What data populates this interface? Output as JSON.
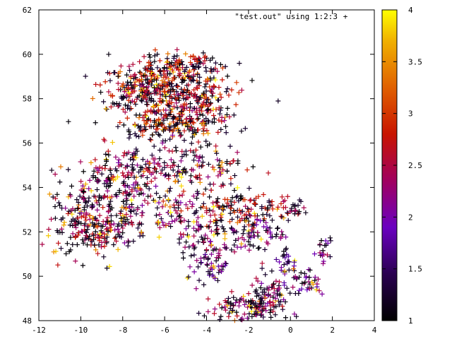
{
  "chart_data": {
    "type": "scatter",
    "legend": {
      "label": "\"test.out\" using 1:2:3",
      "marker": "+",
      "placement": "top-right"
    },
    "xlim": [
      -12,
      4
    ],
    "ylim": [
      48,
      62
    ],
    "x_ticks": [
      -12,
      -10,
      -8,
      -6,
      -4,
      -2,
      0,
      2,
      4
    ],
    "y_ticks": [
      48,
      50,
      52,
      54,
      56,
      58,
      60,
      62
    ],
    "x_tick_labels": [
      "-12",
      "-10",
      "-8",
      "-6",
      "-4",
      "-2",
      "0",
      "2",
      "4"
    ],
    "y_tick_labels": [
      "48",
      "50",
      "52",
      "54",
      "56",
      "58",
      "60",
      "62"
    ],
    "colorbar": {
      "range": [
        1,
        4
      ],
      "ticks": [
        1,
        1.5,
        2,
        2.5,
        3,
        3.5,
        4
      ],
      "tick_labels": [
        "1",
        "1.5",
        "2",
        "2.5",
        "3",
        "3.5",
        "4"
      ],
      "palette": "black-blue-purple-red-orange-yellow"
    },
    "grid": false,
    "clusters": [
      {
        "x": -5.5,
        "y": 58.2,
        "sx": 1.5,
        "sy": 0.8,
        "n": 320,
        "c": 2.8
      },
      {
        "x": -7.2,
        "y": 58.6,
        "sx": 0.9,
        "sy": 0.5,
        "n": 160,
        "c": 2.6
      },
      {
        "x": -5.2,
        "y": 59.5,
        "sx": 0.8,
        "sy": 0.3,
        "n": 90,
        "c": 2.7
      },
      {
        "x": -6.0,
        "y": 56.8,
        "sx": 1.1,
        "sy": 0.3,
        "n": 110,
        "c": 2.9
      },
      {
        "x": -4.5,
        "y": 57.3,
        "sx": 0.9,
        "sy": 0.6,
        "n": 100,
        "c": 2.5
      },
      {
        "x": -7.0,
        "y": 54.9,
        "sx": 1.6,
        "sy": 0.5,
        "n": 130,
        "c": 2.4
      },
      {
        "x": -4.4,
        "y": 54.9,
        "sx": 1.0,
        "sy": 0.5,
        "n": 90,
        "c": 2.4
      },
      {
        "x": -8.3,
        "y": 54.1,
        "sx": 0.9,
        "sy": 0.5,
        "n": 70,
        "c": 2.3
      },
      {
        "x": -9.8,
        "y": 52.2,
        "sx": 0.8,
        "sy": 0.7,
        "n": 150,
        "c": 2.6
      },
      {
        "x": -8.2,
        "y": 52.6,
        "sx": 0.7,
        "sy": 0.8,
        "n": 110,
        "c": 2.4
      },
      {
        "x": -5.5,
        "y": 52.8,
        "sx": 0.8,
        "sy": 0.5,
        "n": 80,
        "c": 2.3
      },
      {
        "x": -2.5,
        "y": 53.0,
        "sx": 1.2,
        "sy": 0.5,
        "n": 140,
        "c": 2.7
      },
      {
        "x": -3.5,
        "y": 51.6,
        "sx": 0.9,
        "sy": 0.6,
        "n": 90,
        "c": 2.3
      },
      {
        "x": -1.3,
        "y": 52.0,
        "sx": 0.5,
        "sy": 0.4,
        "n": 50,
        "c": 2.2
      },
      {
        "x": 0.0,
        "y": 53.1,
        "sx": 0.3,
        "sy": 0.2,
        "n": 25,
        "c": 2.5
      },
      {
        "x": -4.0,
        "y": 50.4,
        "sx": 0.6,
        "sy": 0.4,
        "n": 45,
        "c": 2.0
      },
      {
        "x": -1.8,
        "y": 48.6,
        "sx": 0.9,
        "sy": 0.3,
        "n": 120,
        "c": 2.4
      },
      {
        "x": -1.0,
        "y": 49.3,
        "sx": 0.5,
        "sy": 0.3,
        "n": 50,
        "c": 2.3
      },
      {
        "x": 0.6,
        "y": 49.8,
        "sx": 0.6,
        "sy": 0.4,
        "n": 40,
        "c": 2.1
      },
      {
        "x": 1.5,
        "y": 51.2,
        "sx": 0.3,
        "sy": 0.3,
        "n": 20,
        "c": 2.2
      },
      {
        "x": -0.2,
        "y": 50.8,
        "sx": 0.3,
        "sy": 0.4,
        "n": 25,
        "c": 1.8
      },
      {
        "x": -9.5,
        "y": 53.5,
        "sx": 0.8,
        "sy": 0.4,
        "n": 50,
        "c": 2.3
      }
    ]
  }
}
